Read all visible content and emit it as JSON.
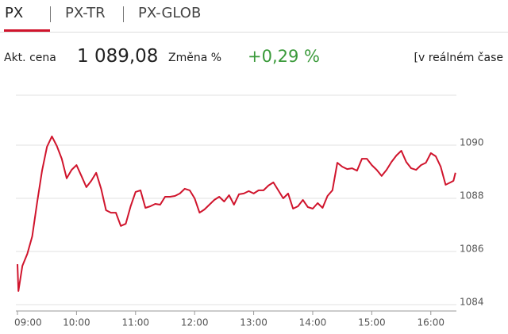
{
  "tabs": [
    "PX",
    "PX-TR",
    "PX-GLOB"
  ],
  "quote": {
    "price_label": "Akt. cena",
    "price": "1 089,08",
    "change_label": "Změna %",
    "change": "+0,29 %",
    "realtime": "[v reálném čase"
  },
  "chart_data": {
    "type": "line",
    "color": "#d0142c",
    "grid": true,
    "x": [
      "09:00",
      "09:01",
      "09:05",
      "09:10",
      "09:15",
      "09:20",
      "09:25",
      "09:30",
      "09:35",
      "09:40",
      "09:45",
      "09:50",
      "09:55",
      "10:00",
      "10:05",
      "10:10",
      "10:15",
      "10:20",
      "10:25",
      "10:30",
      "10:35",
      "10:40",
      "10:45",
      "10:50",
      "10:55",
      "11:00",
      "11:05",
      "11:10",
      "11:15",
      "11:20",
      "11:25",
      "11:30",
      "11:35",
      "11:40",
      "11:45",
      "11:50",
      "11:55",
      "12:00",
      "12:05",
      "12:10",
      "12:15",
      "12:20",
      "12:25",
      "12:30",
      "12:35",
      "12:40",
      "12:45",
      "12:50",
      "12:55",
      "13:00",
      "13:05",
      "13:10",
      "13:15",
      "13:20",
      "13:25",
      "13:30",
      "13:35",
      "13:40",
      "13:45",
      "13:50",
      "13:55",
      "14:00",
      "14:05",
      "14:10",
      "14:15",
      "14:20",
      "14:25",
      "14:30",
      "14:35",
      "14:40",
      "14:45",
      "14:50",
      "14:55",
      "15:00",
      "15:05",
      "15:10",
      "15:15",
      "15:20",
      "15:25",
      "15:30",
      "15:35",
      "15:40",
      "15:45",
      "15:50",
      "15:55",
      "16:00",
      "16:05",
      "16:10",
      "16:15",
      "16:20",
      "16:23",
      "16:25"
    ],
    "values": [
      1085.52,
      1084.51,
      1085.46,
      1085.91,
      1086.57,
      1087.85,
      1089.04,
      1089.94,
      1090.33,
      1089.97,
      1089.49,
      1088.75,
      1089.07,
      1089.25,
      1088.84,
      1088.42,
      1088.66,
      1088.96,
      1088.36,
      1087.55,
      1087.46,
      1087.46,
      1086.96,
      1087.04,
      1087.7,
      1088.24,
      1088.3,
      1087.64,
      1087.7,
      1087.79,
      1087.76,
      1088.06,
      1088.06,
      1088.09,
      1088.18,
      1088.36,
      1088.3,
      1088.0,
      1087.46,
      1087.58,
      1087.76,
      1087.94,
      1088.06,
      1087.88,
      1088.12,
      1087.76,
      1088.15,
      1088.18,
      1088.27,
      1088.18,
      1088.3,
      1088.3,
      1088.48,
      1088.6,
      1088.3,
      1088.0,
      1088.18,
      1087.61,
      1087.7,
      1087.94,
      1087.67,
      1087.61,
      1087.82,
      1087.64,
      1088.09,
      1088.3,
      1089.34,
      1089.19,
      1089.1,
      1089.13,
      1089.04,
      1089.49,
      1089.49,
      1089.25,
      1089.07,
      1088.84,
      1089.07,
      1089.37,
      1089.61,
      1089.79,
      1089.37,
      1089.13,
      1089.07,
      1089.25,
      1089.34,
      1089.7,
      1089.58,
      1089.19,
      1088.51,
      1088.6,
      1088.66,
      1088.96
    ],
    "xlim": [
      "09:00",
      "16:26"
    ],
    "xticks": [
      "09:00",
      "10:00",
      "11:00",
      "12:00",
      "13:00",
      "14:00",
      "15:00",
      "16:00"
    ],
    "ylim": [
      1083.76,
      1091.88
    ],
    "yticks": [
      1084,
      1086,
      1088,
      1090
    ]
  }
}
